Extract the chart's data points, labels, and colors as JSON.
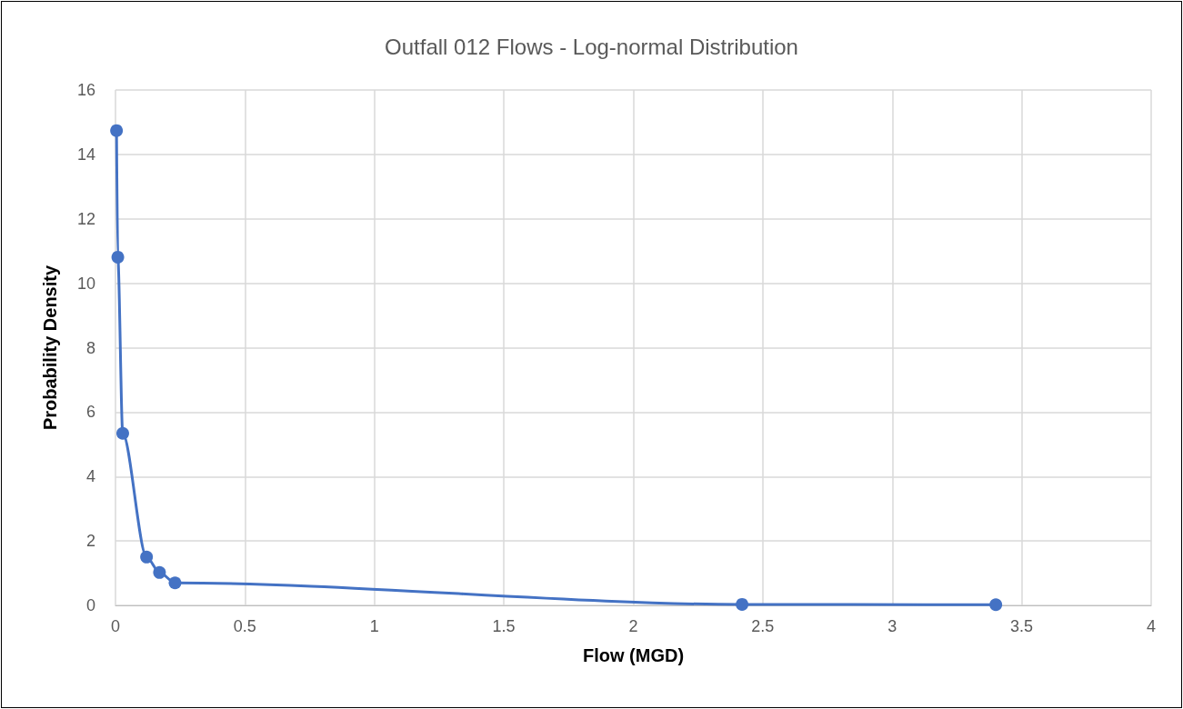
{
  "chart_data": {
    "type": "line",
    "title": "Outfall 012 Flows - Log-normal Distribution",
    "xlabel": "Flow (MGD)",
    "ylabel": "Probability Density",
    "x": [
      0.004,
      0.009,
      0.028,
      0.12,
      0.17,
      0.23,
      2.42,
      3.4
    ],
    "series": [
      {
        "color": "#4472c4",
        "values": [
          14.74,
          10.81,
          5.34,
          1.5,
          1.02,
          0.7,
          0.03,
          0.02
        ]
      }
    ],
    "xlim": [
      0,
      4
    ],
    "xticks": [
      0,
      0.5,
      1,
      1.5,
      2,
      2.5,
      3,
      3.5,
      4
    ],
    "ylim": [
      0,
      16
    ],
    "yticks": [
      0,
      2,
      4,
      6,
      8,
      10,
      12,
      14,
      16
    ],
    "grid": true,
    "marker": "circle",
    "line_style": "solid"
  }
}
